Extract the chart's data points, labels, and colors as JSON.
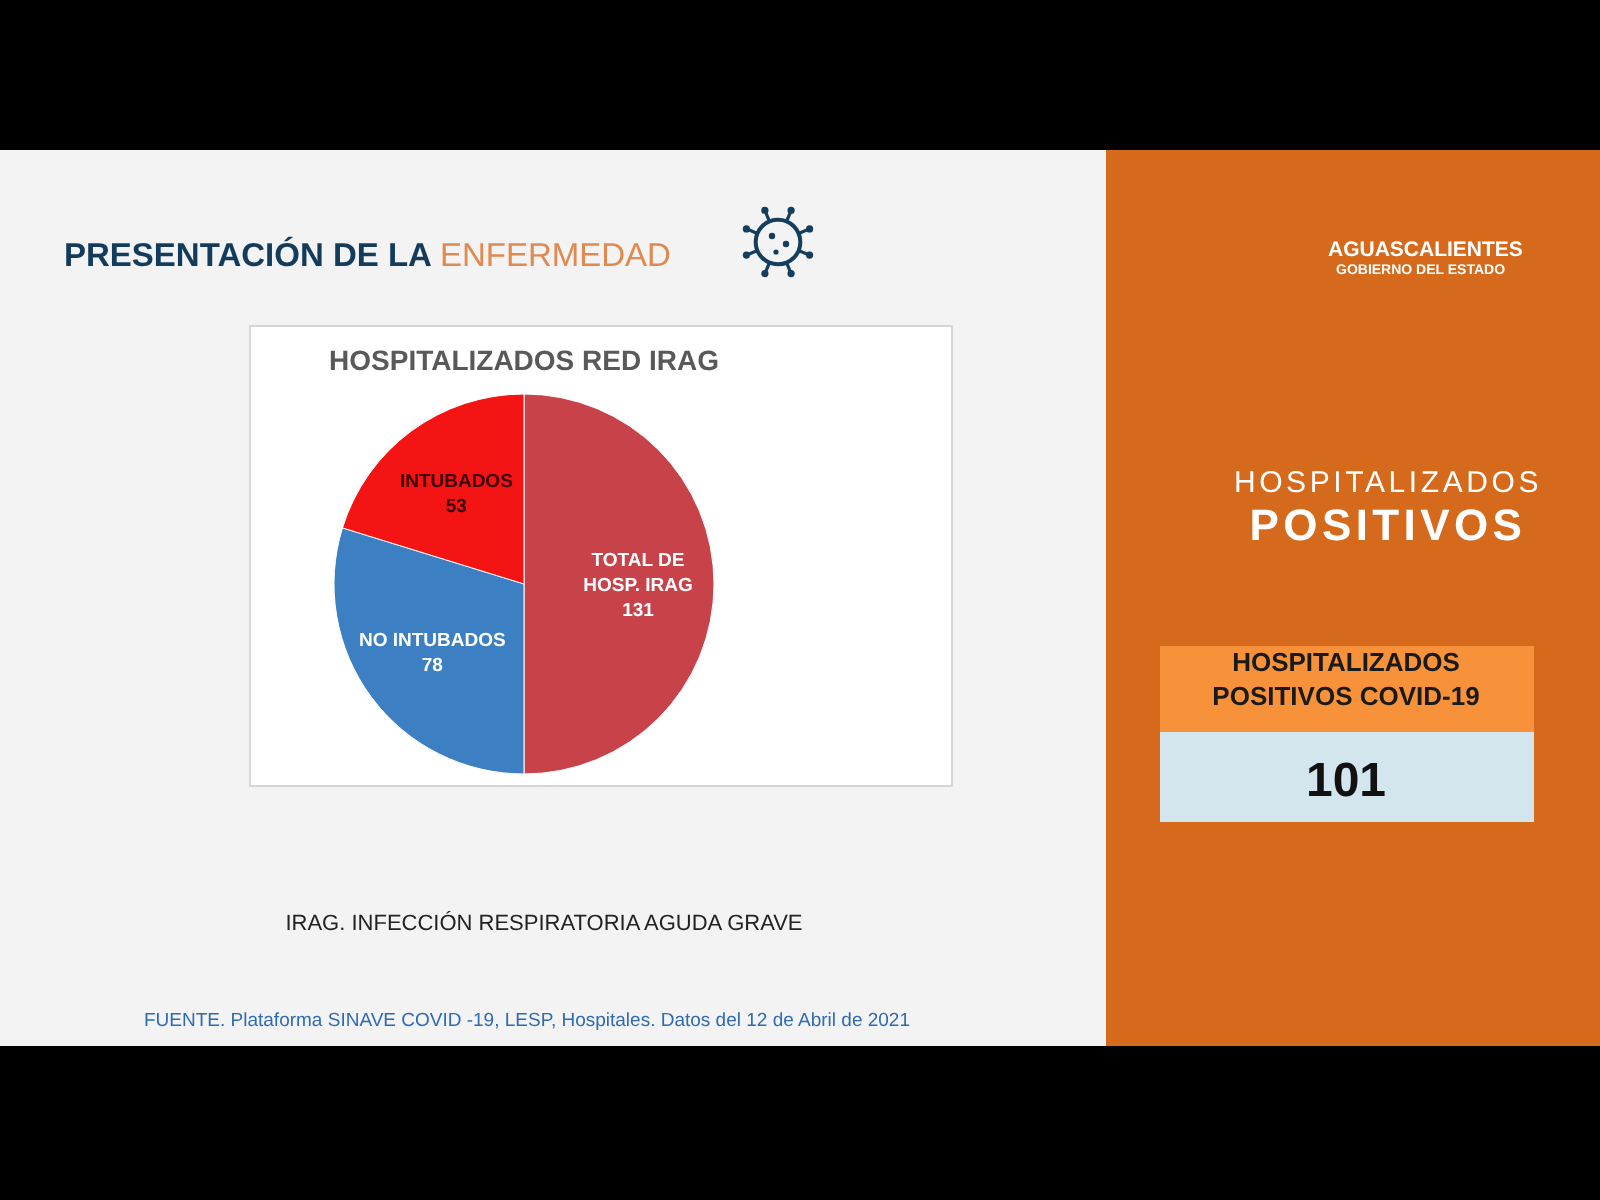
{
  "chart_data": [
    {
      "type": "pie",
      "title": "HOSPITALIZADOS RED IRAG",
      "categories": [
        "TOTAL DE HOSP. IRAG",
        "NO INTUBADOS",
        "INTUBADOS"
      ],
      "values": [
        131,
        78,
        53
      ],
      "colors": [
        "#c8424a",
        "#3c7fc3",
        "#f41414"
      ],
      "data_labels": true,
      "annotations": [
        "PRESENTACIÓN DE LA ENFERMEDAD",
        "IRAG. INFECCIÓN RESPIRATORIA AGUDA GRAVE",
        "FUENTE. Plataforma SINAVE COVID -19, LESP, Hospitales. Datos del 12 de Abril de 2021"
      ]
    },
    {
      "type": "other",
      "title": "HOSPITALIZADOS POSITIVOS",
      "subtitle": "HOSPITALIZADOS POSITIVOS COVID-19",
      "annotations": [
        "AGUASCALIENTES",
        "GOBIERNO DEL ESTADO",
        "101"
      ]
    }
  ]
}
